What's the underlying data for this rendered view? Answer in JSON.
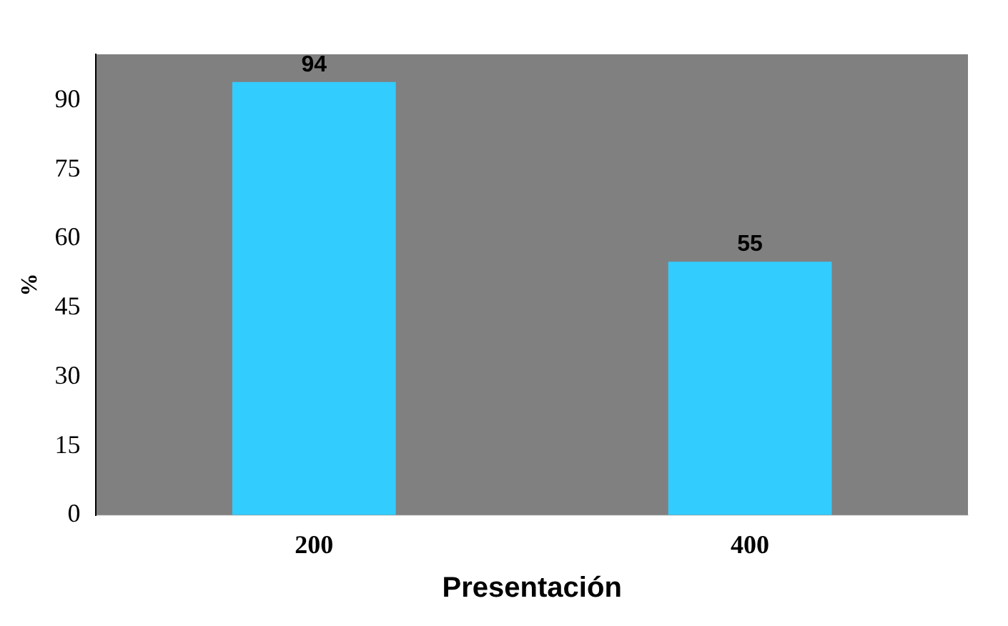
{
  "chart_data": {
    "type": "bar",
    "xlabel": "Presentación",
    "ylabel": "%",
    "categories": [
      "200",
      "400"
    ],
    "series": [
      {
        "color": "#33ccff",
        "values": [
          94,
          55
        ]
      }
    ],
    "data_labels": true,
    "ylim": [
      0,
      100
    ],
    "yticks": [
      0,
      15,
      30,
      45,
      60,
      75,
      90
    ],
    "grid": false,
    "legend": false
  }
}
